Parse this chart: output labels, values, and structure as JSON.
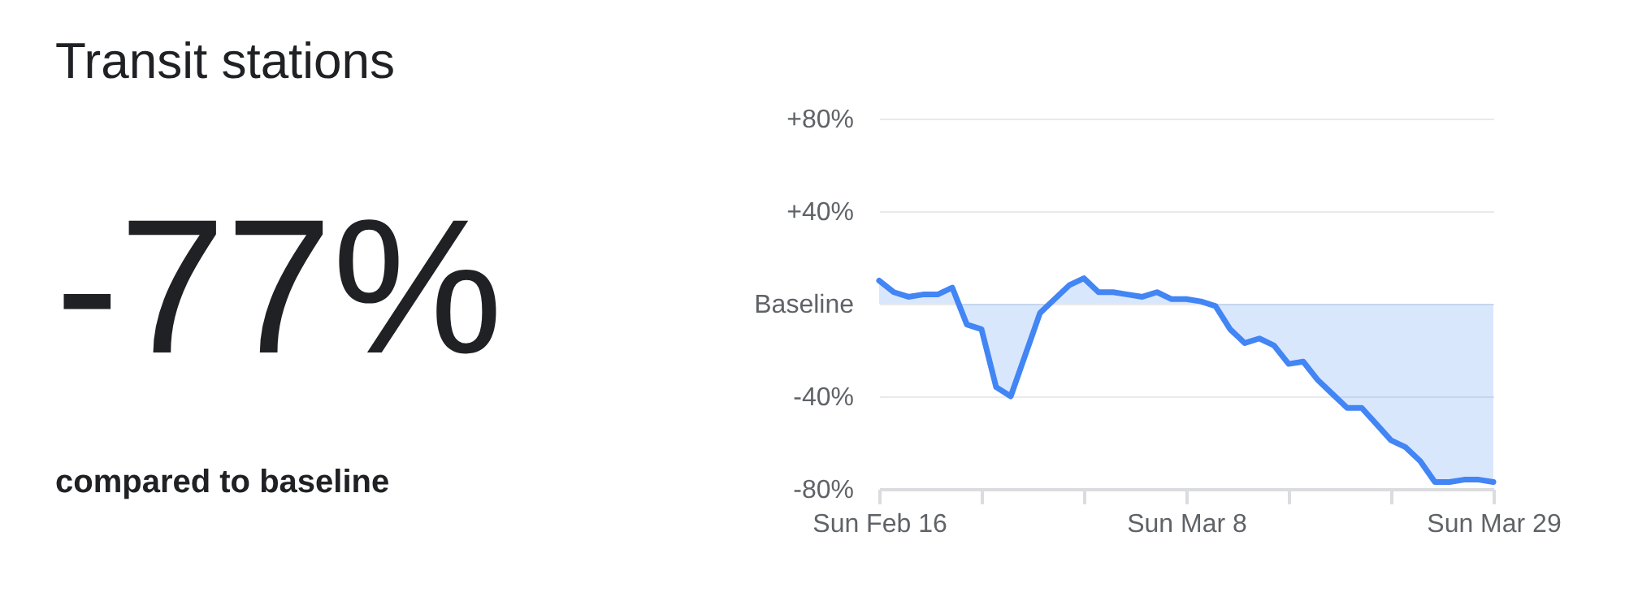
{
  "chart_data": {
    "type": "area",
    "title": "Transit stations",
    "annotations": [
      "-77%",
      "compared to baseline"
    ],
    "x": [
      "--02-16",
      "--02-17",
      "--02-18",
      "--02-19",
      "--02-20",
      "--02-21",
      "--02-22",
      "--02-23",
      "--02-24",
      "--02-25",
      "--02-26",
      "--02-27",
      "--02-28",
      "--02-29",
      "--03-01",
      "--03-02",
      "--03-03",
      "--03-04",
      "--03-05",
      "--03-06",
      "--03-07",
      "--03-08",
      "--03-09",
      "--03-10",
      "--03-11",
      "--03-12",
      "--03-13",
      "--03-14",
      "--03-15",
      "--03-16",
      "--03-17",
      "--03-18",
      "--03-19",
      "--03-20",
      "--03-21",
      "--03-22",
      "--03-23",
      "--03-24",
      "--03-25",
      "--03-26",
      "--03-27",
      "--03-28",
      "--03-29"
    ],
    "series": [
      {
        "color": "#4285f4",
        "values": [
          10,
          5,
          3,
          4,
          4,
          7,
          -9,
          -11,
          -36,
          -40,
          -22,
          -4,
          2,
          8,
          11,
          5,
          5,
          4,
          3,
          5,
          2,
          2,
          1,
          -1,
          -11,
          -17,
          -15,
          -18,
          -26,
          -25,
          -33,
          -39,
          -45,
          -45,
          -52,
          -59,
          -62,
          -68,
          -77,
          -77,
          -76,
          -76,
          -77
        ]
      }
    ],
    "xlim": [
      "--02-16",
      "--03-29"
    ],
    "xticks": [
      {
        "value": "--02-16",
        "label": "Sun Feb 16"
      },
      {
        "value": "--02-23",
        "label": null
      },
      {
        "value": "--03-01",
        "label": null
      },
      {
        "value": "--03-08",
        "label": "Sun Mar 8"
      },
      {
        "value": "--03-15",
        "label": null
      },
      {
        "value": "--03-22",
        "label": null
      },
      {
        "value": "--03-29",
        "label": "Sun Mar 29"
      }
    ],
    "ylim": [
      -80,
      80
    ],
    "yticks": [
      {
        "value": -80,
        "label": "-80%"
      },
      {
        "value": -40,
        "label": "-40%"
      },
      {
        "value": 0,
        "label": "Baseline"
      },
      {
        "value": 40,
        "label": "+40%"
      },
      {
        "value": 80,
        "label": "+80%"
      }
    ],
    "grid": "y"
  }
}
